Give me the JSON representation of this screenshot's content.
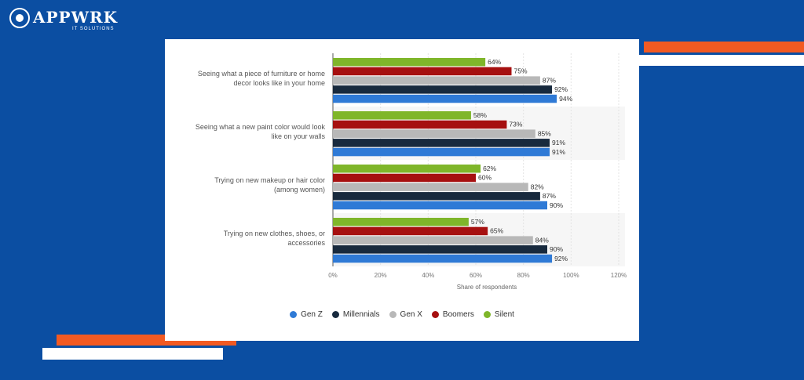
{
  "brand": {
    "name": "APPWRK",
    "sub": "IT SOLUTIONS"
  },
  "colors": {
    "background": "#0b4ea2",
    "accent_orange": "#f25a22",
    "white": "#ffffff"
  },
  "chart_data": {
    "type": "bar",
    "orientation": "horizontal",
    "categories": [
      "Seeing what a piece of furniture or home decor looks like in your home",
      "Seeing what a new paint color would look like on your walls",
      "Trying on new makeup or hair color (among women)",
      "Trying on new clothes, shoes, or accessories"
    ],
    "category_lines": [
      [
        "Seeing what a piece of furniture or home",
        "decor looks like in your home"
      ],
      [
        "Seeing what a new paint color would look",
        "like on your walls"
      ],
      [
        "Trying on new makeup or hair color",
        "(among women)"
      ],
      [
        "Trying on new clothes, shoes, or",
        "accessories"
      ]
    ],
    "series": [
      {
        "name": "Silent",
        "color": "#7fb62a",
        "values": [
          64,
          58,
          62,
          57
        ],
        "labels": [
          "64%",
          "58%",
          "62%",
          "57%"
        ]
      },
      {
        "name": "Boomers",
        "color": "#a61010",
        "values": [
          75,
          73,
          60,
          65
        ],
        "labels": [
          "75%",
          "73%",
          "60%",
          "65%"
        ]
      },
      {
        "name": "Gen X",
        "color": "#b8b8b8",
        "values": [
          87,
          85,
          82,
          84
        ],
        "labels": [
          "87%",
          "85%",
          "82%",
          "84%"
        ]
      },
      {
        "name": "Millennials",
        "color": "#182a3e",
        "values": [
          92,
          91,
          87,
          90
        ],
        "labels": [
          "92%",
          "91%",
          "87%",
          "90%"
        ]
      },
      {
        "name": "Gen Z",
        "color": "#2f7ad6",
        "values": [
          94,
          91,
          90,
          92
        ],
        "labels": [
          "94%",
          "91%",
          "90%",
          "92%"
        ]
      }
    ],
    "legend_order": [
      "Gen Z",
      "Millennials",
      "Gen X",
      "Boomers",
      "Silent"
    ],
    "xlim": [
      0,
      120
    ],
    "xticks": [
      "0%",
      "20%",
      "40%",
      "60%",
      "80%",
      "100%",
      "120%"
    ],
    "xlabel": "Share of respondents",
    "legend_position": "bottom",
    "grid": true
  }
}
